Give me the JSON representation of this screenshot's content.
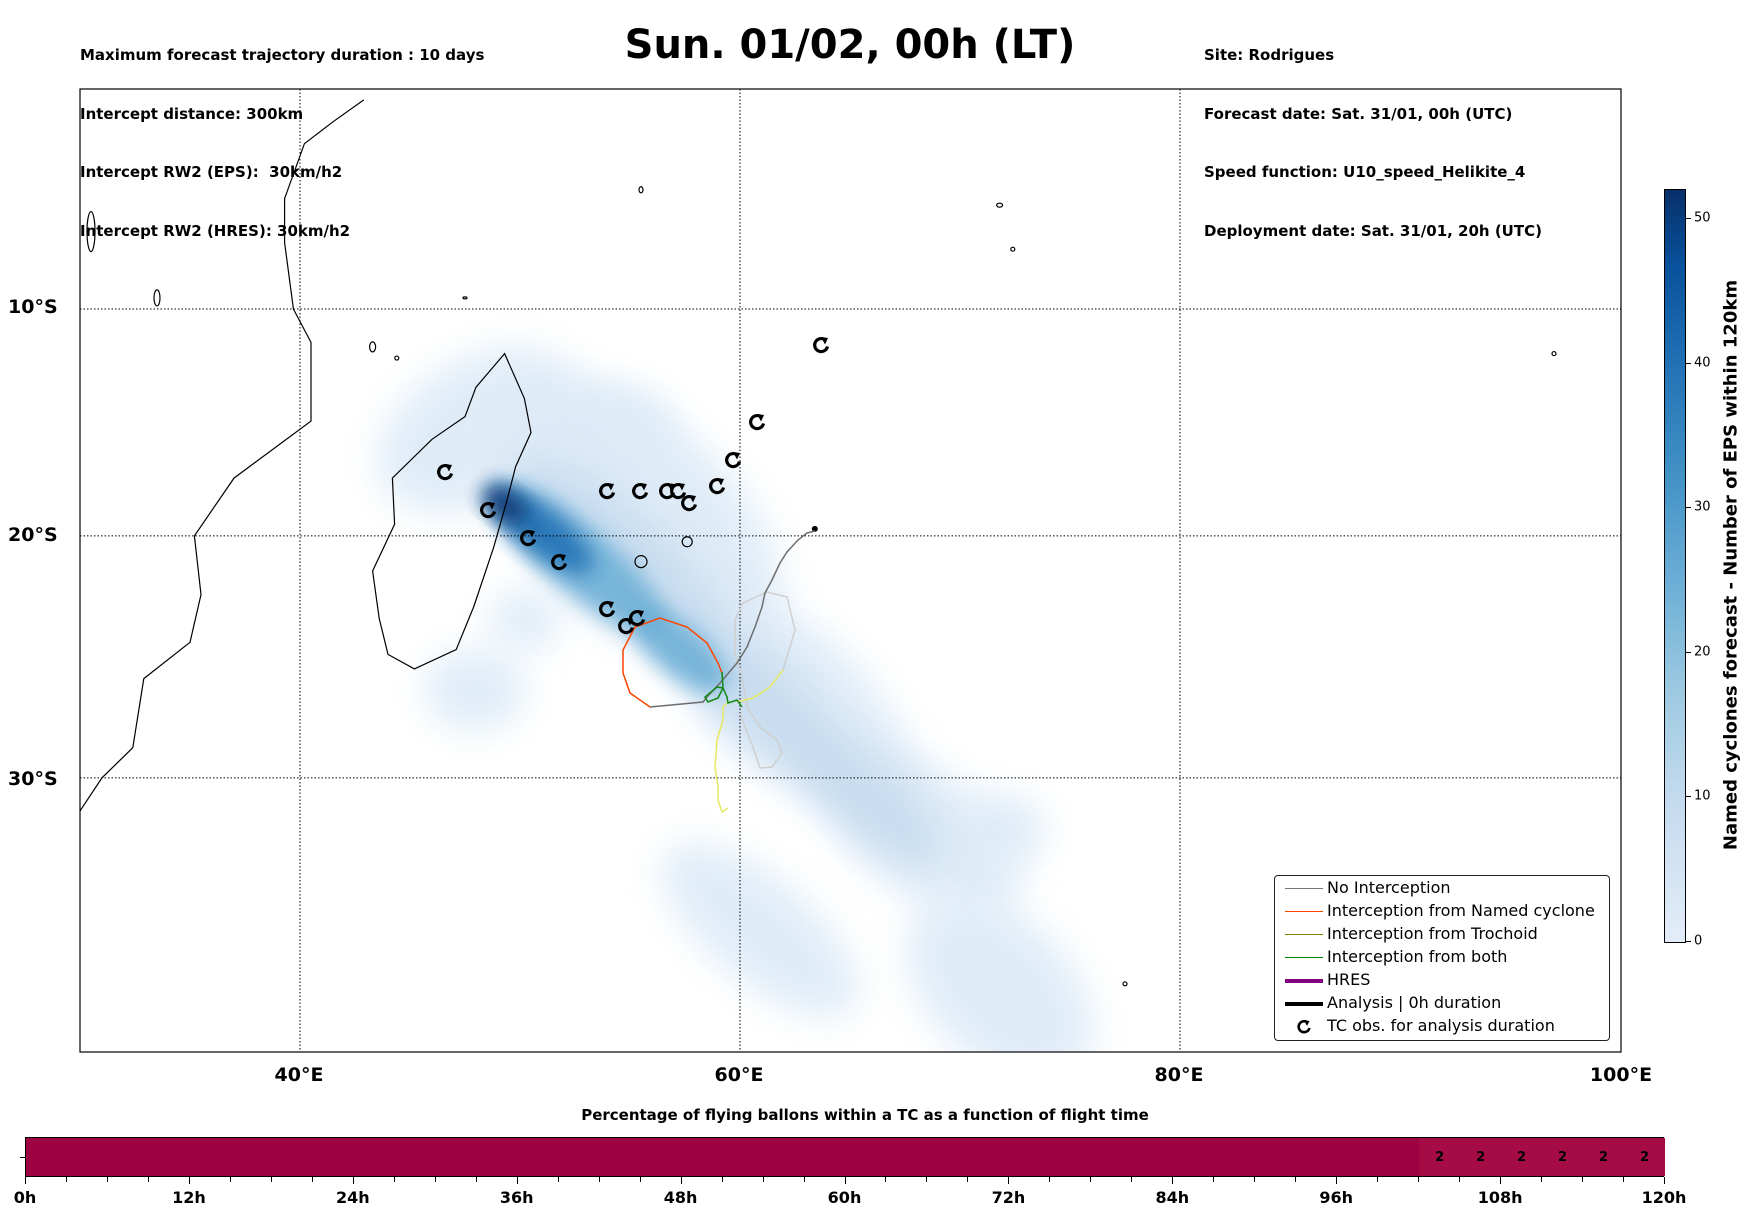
{
  "header": {
    "left": [
      "Maximum forecast trajectory duration : 10 days",
      "Intercept distance: 300km",
      "Intercept RW2 (EPS):  30km/h2",
      "Intercept RW2 (HRES): 30km/h2"
    ],
    "title": "Sun. 01/02, 00h (LT)",
    "right": [
      "Site: Rodrigues",
      "Forecast date: Sat. 31/01, 00h (UTC)",
      "Speed function: U10_speed_Helikite_4",
      "Deployment date: Sat. 31/01, 20h (UTC)"
    ]
  },
  "chart_data": [
    {
      "type": "heatmap",
      "title": "Sun. 01/02, 00h (LT)",
      "xlabel": "",
      "ylabel": "",
      "x_ticks": [
        "40°E",
        "60°E",
        "80°E",
        "100°E"
      ],
      "y_ticks": [
        "10°S",
        "20°S",
        "30°S"
      ],
      "xlim": [
        30,
        100
      ],
      "ylim": [
        -40,
        0
      ],
      "grid": true,
      "legend_position": "bottom-right",
      "legend": [
        {
          "label": "No Interception",
          "color": "#777777",
          "style": "thin"
        },
        {
          "label": "Interception from Named cyclone",
          "color": "#ff4500",
          "style": "thin"
        },
        {
          "label": "Interception from Trochoid",
          "color": "#808000",
          "style": "thin"
        },
        {
          "label": "Interception from both",
          "color": "#008000",
          "style": "thin"
        },
        {
          "label": "HRES",
          "color": "#800080",
          "style": "thick"
        },
        {
          "label": "Analysis | 0h duration",
          "color": "#000000",
          "style": "thick"
        },
        {
          "label": "TC obs. for analysis duration",
          "color": "#000000",
          "style": "symbol"
        }
      ],
      "colorbar": {
        "label": "Named cyclones forecast - Number of EPS within 120km",
        "ticks": [
          "0",
          "10",
          "20",
          "30",
          "40",
          "50"
        ],
        "range": [
          0,
          52
        ]
      },
      "site": {
        "name": "Rodrigues",
        "lon": 63.4,
        "lat": -19.7
      }
    },
    {
      "type": "heatmap",
      "title": "Percentage of flying ballons within a TC as a function of flight time",
      "x_ticks": [
        "0h",
        "12h",
        "24h",
        "36h",
        "48h",
        "60h",
        "72h",
        "84h",
        "96h",
        "108h",
        "120h"
      ],
      "xlim": [
        0,
        120
      ],
      "cells": [
        {
          "start": 0,
          "end": 102,
          "value": "",
          "color": "#9e0142"
        },
        {
          "start": 102,
          "end": 105,
          "value": "2",
          "color": "#a50c45"
        },
        {
          "start": 105,
          "end": 108,
          "value": "2",
          "color": "#a50c45"
        },
        {
          "start": 108,
          "end": 111,
          "value": "2",
          "color": "#a50c45"
        },
        {
          "start": 111,
          "end": 114,
          "value": "2",
          "color": "#a50c45"
        },
        {
          "start": 114,
          "end": 117,
          "value": "2",
          "color": "#a50c45"
        },
        {
          "start": 117,
          "end": 120,
          "value": "2",
          "color": "#a50c45"
        }
      ]
    }
  ]
}
